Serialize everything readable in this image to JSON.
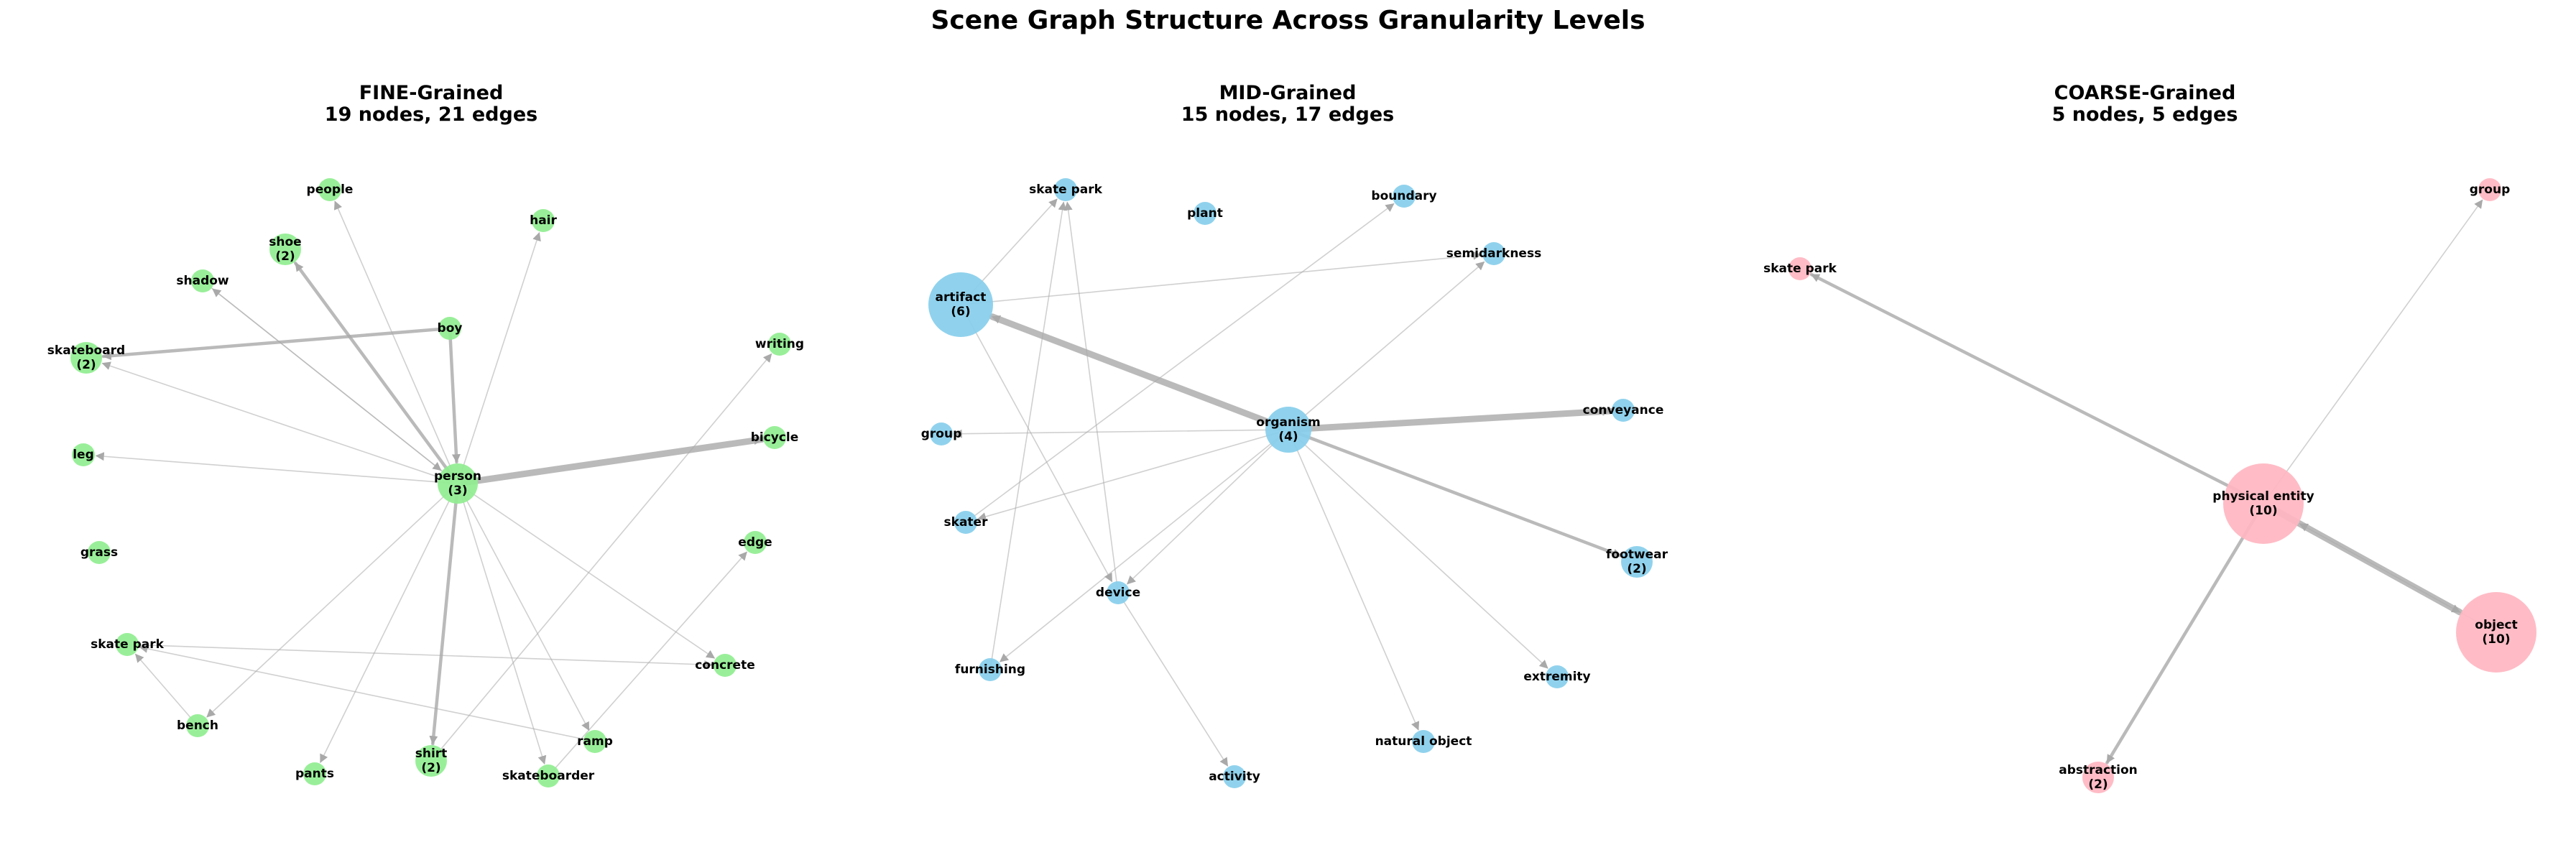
{
  "title": "Scene Graph Structure Across Granularity Levels",
  "colors": {
    "edge": "#a9a9a9"
  },
  "panels": [
    {
      "id": "fine",
      "title": "FINE-Grained",
      "subtitle": "19 nodes, 21 edges",
      "node_color": "#90ee90",
      "nodes": [
        {
          "id": "people",
          "label": "people"
        },
        {
          "id": "hair",
          "label": "hair"
        },
        {
          "id": "shoe",
          "label": "shoe",
          "count": 2
        },
        {
          "id": "shadow",
          "label": "shadow"
        },
        {
          "id": "boy",
          "label": "boy"
        },
        {
          "id": "skateboard",
          "label": "skateboard",
          "count": 2
        },
        {
          "id": "writing",
          "label": "writing"
        },
        {
          "id": "bicycle",
          "label": "bicycle"
        },
        {
          "id": "leg",
          "label": "leg"
        },
        {
          "id": "person",
          "label": "person",
          "count": 3
        },
        {
          "id": "edge",
          "label": "edge"
        },
        {
          "id": "grass",
          "label": "grass"
        },
        {
          "id": "skate park",
          "label": "skate park"
        },
        {
          "id": "concrete",
          "label": "concrete"
        },
        {
          "id": "bench",
          "label": "bench"
        },
        {
          "id": "ramp",
          "label": "ramp"
        },
        {
          "id": "shirt",
          "label": "shirt",
          "count": 2
        },
        {
          "id": "pants",
          "label": "pants"
        },
        {
          "id": "skateboarder",
          "label": "skateboarder"
        }
      ],
      "edges": [
        {
          "source": "person",
          "target": "bicycle",
          "weight": 4
        },
        {
          "source": "person",
          "target": "shoe",
          "weight": 2
        },
        {
          "source": "boy",
          "target": "person",
          "weight": 2
        },
        {
          "source": "boy",
          "target": "skateboard",
          "weight": 2
        },
        {
          "source": "person",
          "target": "shirt",
          "weight": 2
        },
        {
          "source": "person",
          "target": "skateboard",
          "weight": 1
        },
        {
          "source": "person",
          "target": "hair",
          "weight": 1
        },
        {
          "source": "person",
          "target": "bench",
          "weight": 1
        },
        {
          "source": "person",
          "target": "ramp",
          "weight": 1
        },
        {
          "source": "person",
          "target": "concrete",
          "weight": 1
        },
        {
          "source": "person",
          "target": "pants",
          "weight": 1
        },
        {
          "source": "person",
          "target": "people",
          "weight": 1
        },
        {
          "source": "person",
          "target": "shadow",
          "weight": 1
        },
        {
          "source": "person",
          "target": "leg",
          "weight": 1
        },
        {
          "source": "shadow",
          "target": "person",
          "weight": 1
        },
        {
          "source": "ramp",
          "target": "skate park",
          "weight": 1
        },
        {
          "source": "skateboarder",
          "target": "edge",
          "weight": 1
        },
        {
          "source": "shirt",
          "target": "writing",
          "weight": 1
        },
        {
          "source": "skate park",
          "target": "concrete",
          "weight": 1
        },
        {
          "source": "bench",
          "target": "skate park",
          "weight": 1
        },
        {
          "source": "person",
          "target": "skateboarder",
          "weight": 1
        }
      ]
    },
    {
      "id": "mid",
      "title": "MID-Grained",
      "subtitle": "15 nodes, 17 edges",
      "node_color": "#87ceeb",
      "nodes": [
        {
          "id": "skate park",
          "label": "skate park"
        },
        {
          "id": "plant",
          "label": "plant"
        },
        {
          "id": "boundary",
          "label": "boundary"
        },
        {
          "id": "semidarkness",
          "label": "semidarkness"
        },
        {
          "id": "artifact",
          "label": "artifact",
          "count": 6
        },
        {
          "id": "conveyance",
          "label": "conveyance"
        },
        {
          "id": "group",
          "label": "group"
        },
        {
          "id": "organism",
          "label": "organism",
          "count": 4
        },
        {
          "id": "skater",
          "label": "skater"
        },
        {
          "id": "footwear",
          "label": "footwear",
          "count": 2
        },
        {
          "id": "device",
          "label": "device"
        },
        {
          "id": "furnishing",
          "label": "furnishing"
        },
        {
          "id": "extremity",
          "label": "extremity"
        },
        {
          "id": "natural object",
          "label": "natural object"
        },
        {
          "id": "activity",
          "label": "activity"
        }
      ],
      "edges": [
        {
          "source": "organism",
          "target": "artifact",
          "weight": 6
        },
        {
          "source": "organism",
          "target": "conveyance",
          "weight": 4
        },
        {
          "source": "organism",
          "target": "footwear",
          "weight": 2
        },
        {
          "source": "organism",
          "target": "natural object",
          "weight": 1
        },
        {
          "source": "organism",
          "target": "furnishing",
          "weight": 1
        },
        {
          "source": "organism",
          "target": "device",
          "weight": 1
        },
        {
          "source": "organism",
          "target": "group",
          "weight": 1
        },
        {
          "source": "organism",
          "target": "semidarkness",
          "weight": 1
        },
        {
          "source": "organism",
          "target": "extremity",
          "weight": 1
        },
        {
          "source": "artifact",
          "target": "semidarkness",
          "weight": 1
        },
        {
          "source": "artifact",
          "target": "skate park",
          "weight": 1
        },
        {
          "source": "artifact",
          "target": "device",
          "weight": 1
        },
        {
          "source": "device",
          "target": "skate park",
          "weight": 1
        },
        {
          "source": "device",
          "target": "activity",
          "weight": 1
        },
        {
          "source": "furnishing",
          "target": "skate park",
          "weight": 1
        },
        {
          "source": "skater",
          "target": "boundary",
          "weight": 1
        },
        {
          "source": "organism",
          "target": "skater",
          "weight": 1
        }
      ]
    },
    {
      "id": "coarse",
      "title": "COARSE-Grained",
      "subtitle": "5 nodes, 5 edges",
      "node_color": "#ffb6c1",
      "nodes": [
        {
          "id": "group",
          "label": "group"
        },
        {
          "id": "skate park",
          "label": "skate park"
        },
        {
          "id": "physical entity",
          "label": "physical entity",
          "count": 10
        },
        {
          "id": "object",
          "label": "object",
          "count": 10
        },
        {
          "id": "abstraction",
          "label": "abstraction",
          "count": 2
        }
      ],
      "edges": [
        {
          "source": "physical entity",
          "target": "object",
          "weight": 6
        },
        {
          "source": "physical entity",
          "target": "skate park",
          "weight": 2
        },
        {
          "source": "physical entity",
          "target": "abstraction",
          "weight": 2
        },
        {
          "source": "physical entity",
          "target": "group",
          "weight": 1
        },
        {
          "source": "object",
          "target": "physical entity",
          "weight": 1
        }
      ]
    }
  ]
}
